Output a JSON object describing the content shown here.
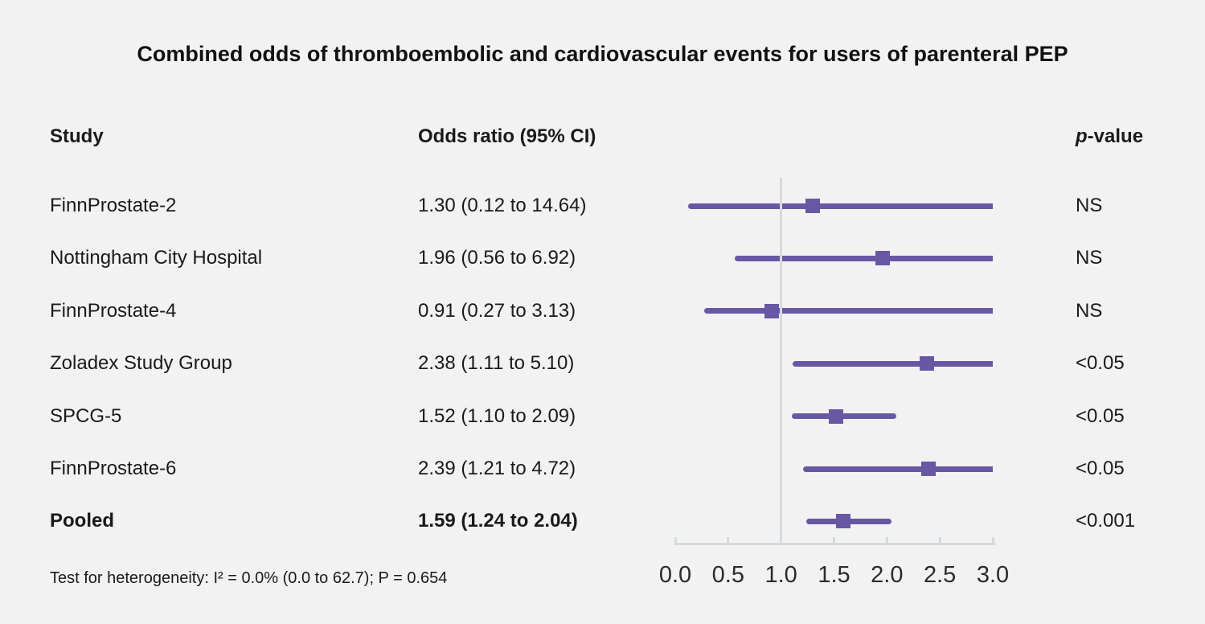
{
  "title": "Combined odds of thromboembolic and cardiovascular events for users of parenteral PEP",
  "header": {
    "study": "Study",
    "odds_ratio": "Odds ratio (95% CI)",
    "p_italic": "p",
    "p_rest": "-value"
  },
  "footer": "Test for heterogeneity: I² = 0.0% (0.0 to 62.7); P = 0.654",
  "colors": {
    "background": "#f2f2f2",
    "marker": "#6858a4",
    "axis_line": "#d5dade",
    "text": "#1a1a1a"
  },
  "chart_data": {
    "type": "forest",
    "title": "Combined odds of thromboembolic and cardiovascular events for users of parenteral PEP",
    "x_axis": {
      "ticks": [
        "0.0",
        "0.5",
        "1.0",
        "1.5",
        "2.0",
        "2.5",
        "3.0"
      ],
      "tick_values": [
        0,
        0.5,
        1,
        1.5,
        2,
        2.5,
        3
      ],
      "range": [
        0,
        3
      ],
      "reference_value": 1.0
    },
    "rows": [
      {
        "study": "FinnProstate-2",
        "or_text": "1.30 (0.12 to 14.64)",
        "estimate": 1.3,
        "ci_low": 0.12,
        "ci_high": 14.64,
        "p_value": "NS",
        "bold": false
      },
      {
        "study": "Nottingham City Hospital",
        "or_text": "1.96 (0.56 to 6.92)",
        "estimate": 1.96,
        "ci_low": 0.56,
        "ci_high": 6.92,
        "p_value": "NS",
        "bold": false
      },
      {
        "study": "FinnProstate-4",
        "or_text": "0.91 (0.27 to 3.13)",
        "estimate": 0.91,
        "ci_low": 0.27,
        "ci_high": 3.13,
        "p_value": "NS",
        "bold": false
      },
      {
        "study": "Zoladex Study Group",
        "or_text": "2.38 (1.11 to 5.10)",
        "estimate": 2.38,
        "ci_low": 1.11,
        "ci_high": 5.1,
        "p_value": "<0.05",
        "bold": false
      },
      {
        "study": "SPCG-5",
        "or_text": "1.52 (1.10 to 2.09)",
        "estimate": 1.52,
        "ci_low": 1.1,
        "ci_high": 2.09,
        "p_value": "<0.05",
        "bold": false
      },
      {
        "study": "FinnProstate-6",
        "or_text": "2.39 (1.21 to 4.72)",
        "estimate": 2.39,
        "ci_low": 1.21,
        "ci_high": 4.72,
        "p_value": "<0.05",
        "bold": false
      },
      {
        "study": "Pooled",
        "or_text": "1.59 (1.24 to 2.04)",
        "estimate": 1.59,
        "ci_low": 1.24,
        "ci_high": 2.04,
        "p_value": "<0.001",
        "bold": true
      }
    ],
    "heterogeneity_note": "Test for heterogeneity: I² = 0.0% (0.0 to 62.7); P = 0.654"
  }
}
